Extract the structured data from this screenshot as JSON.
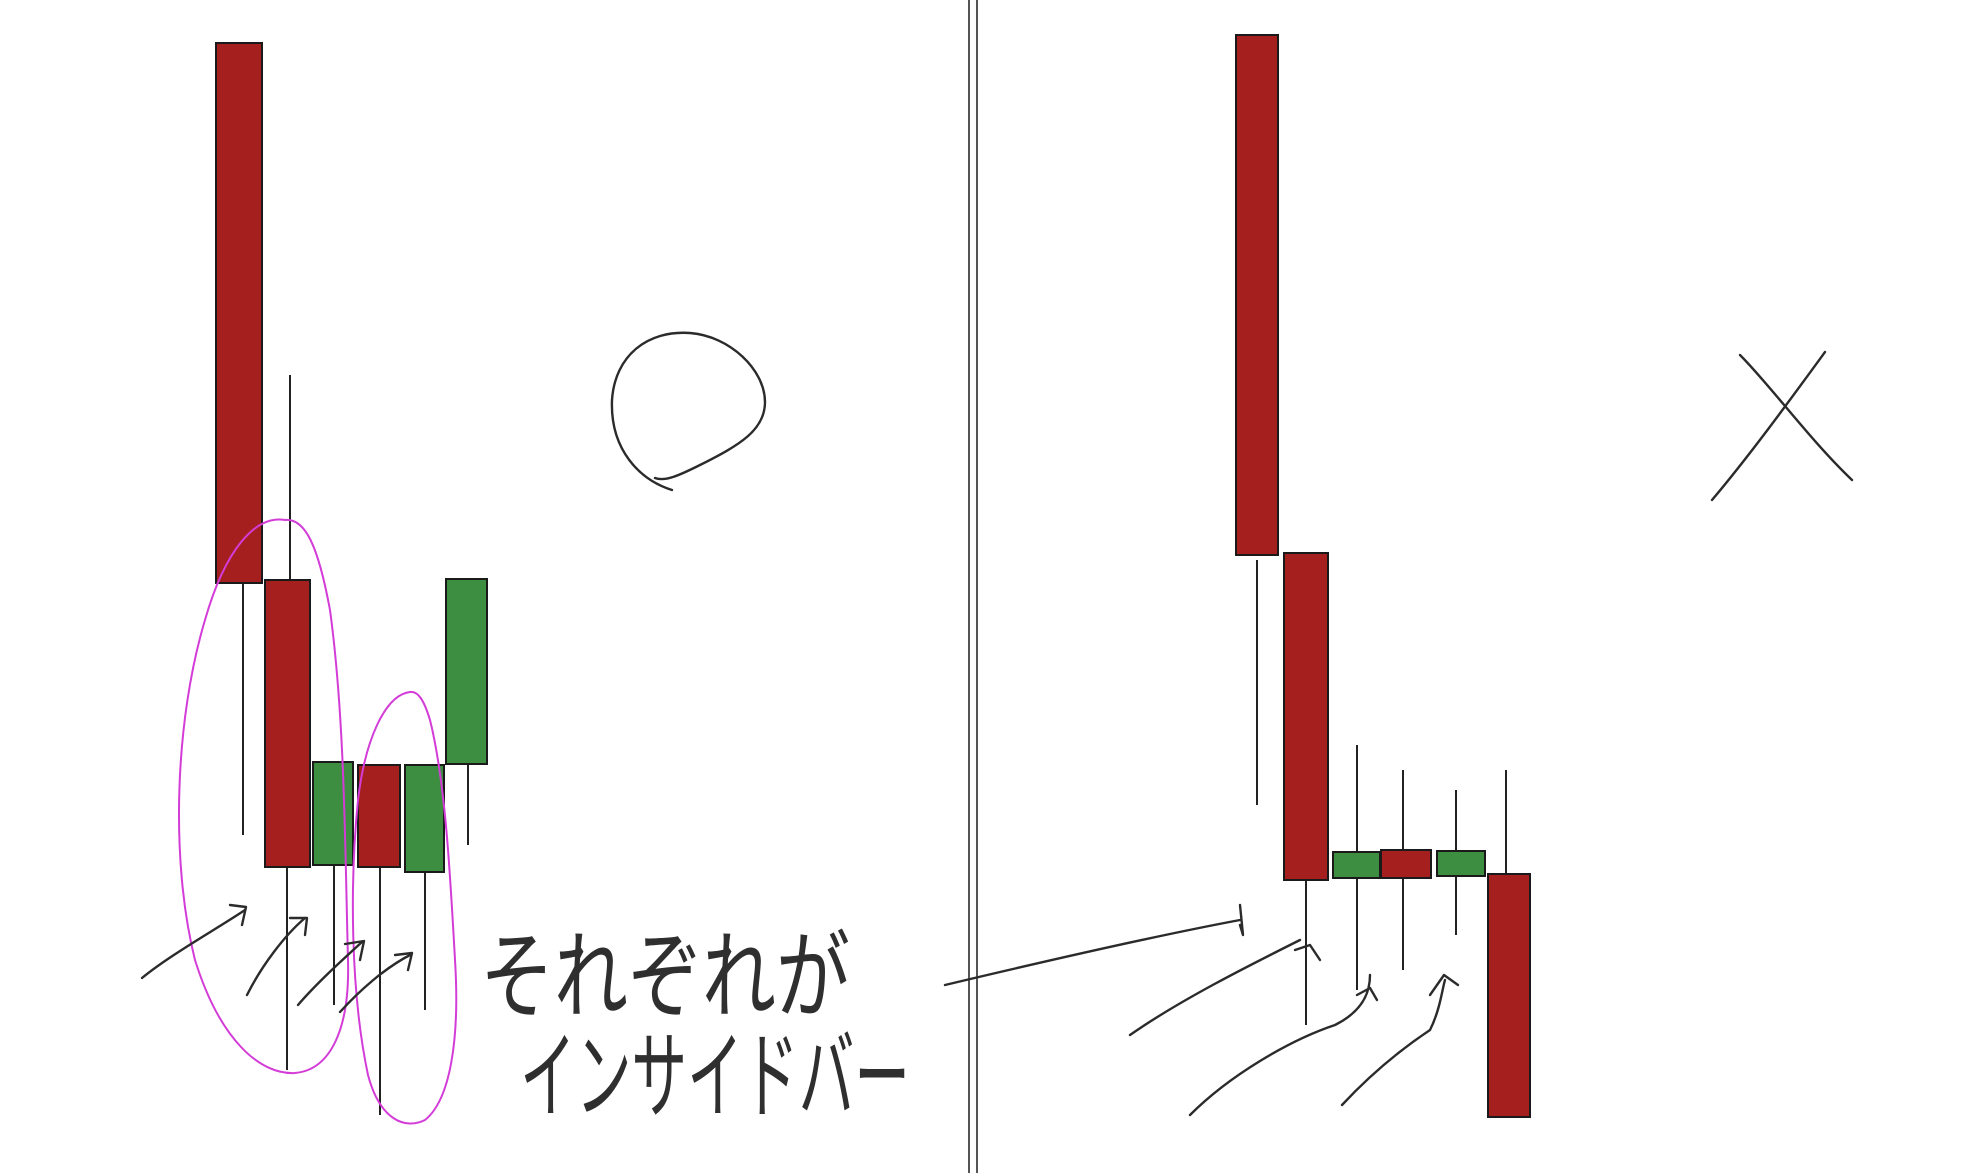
{
  "colors": {
    "bear": "#a51f1f",
    "bull": "#3e8e41",
    "outline": "#1a1a1a",
    "highlight": "#d43cd8",
    "ink": "#2b2b2b"
  },
  "panels": {
    "left": {
      "verdict_icon": "circle-mark-icon",
      "note": "O"
    },
    "right": {
      "verdict_icon": "cross-mark-icon",
      "note": "X"
    }
  },
  "annotation": {
    "line1": "それぞれが",
    "line2": "インサイドバー"
  }
}
